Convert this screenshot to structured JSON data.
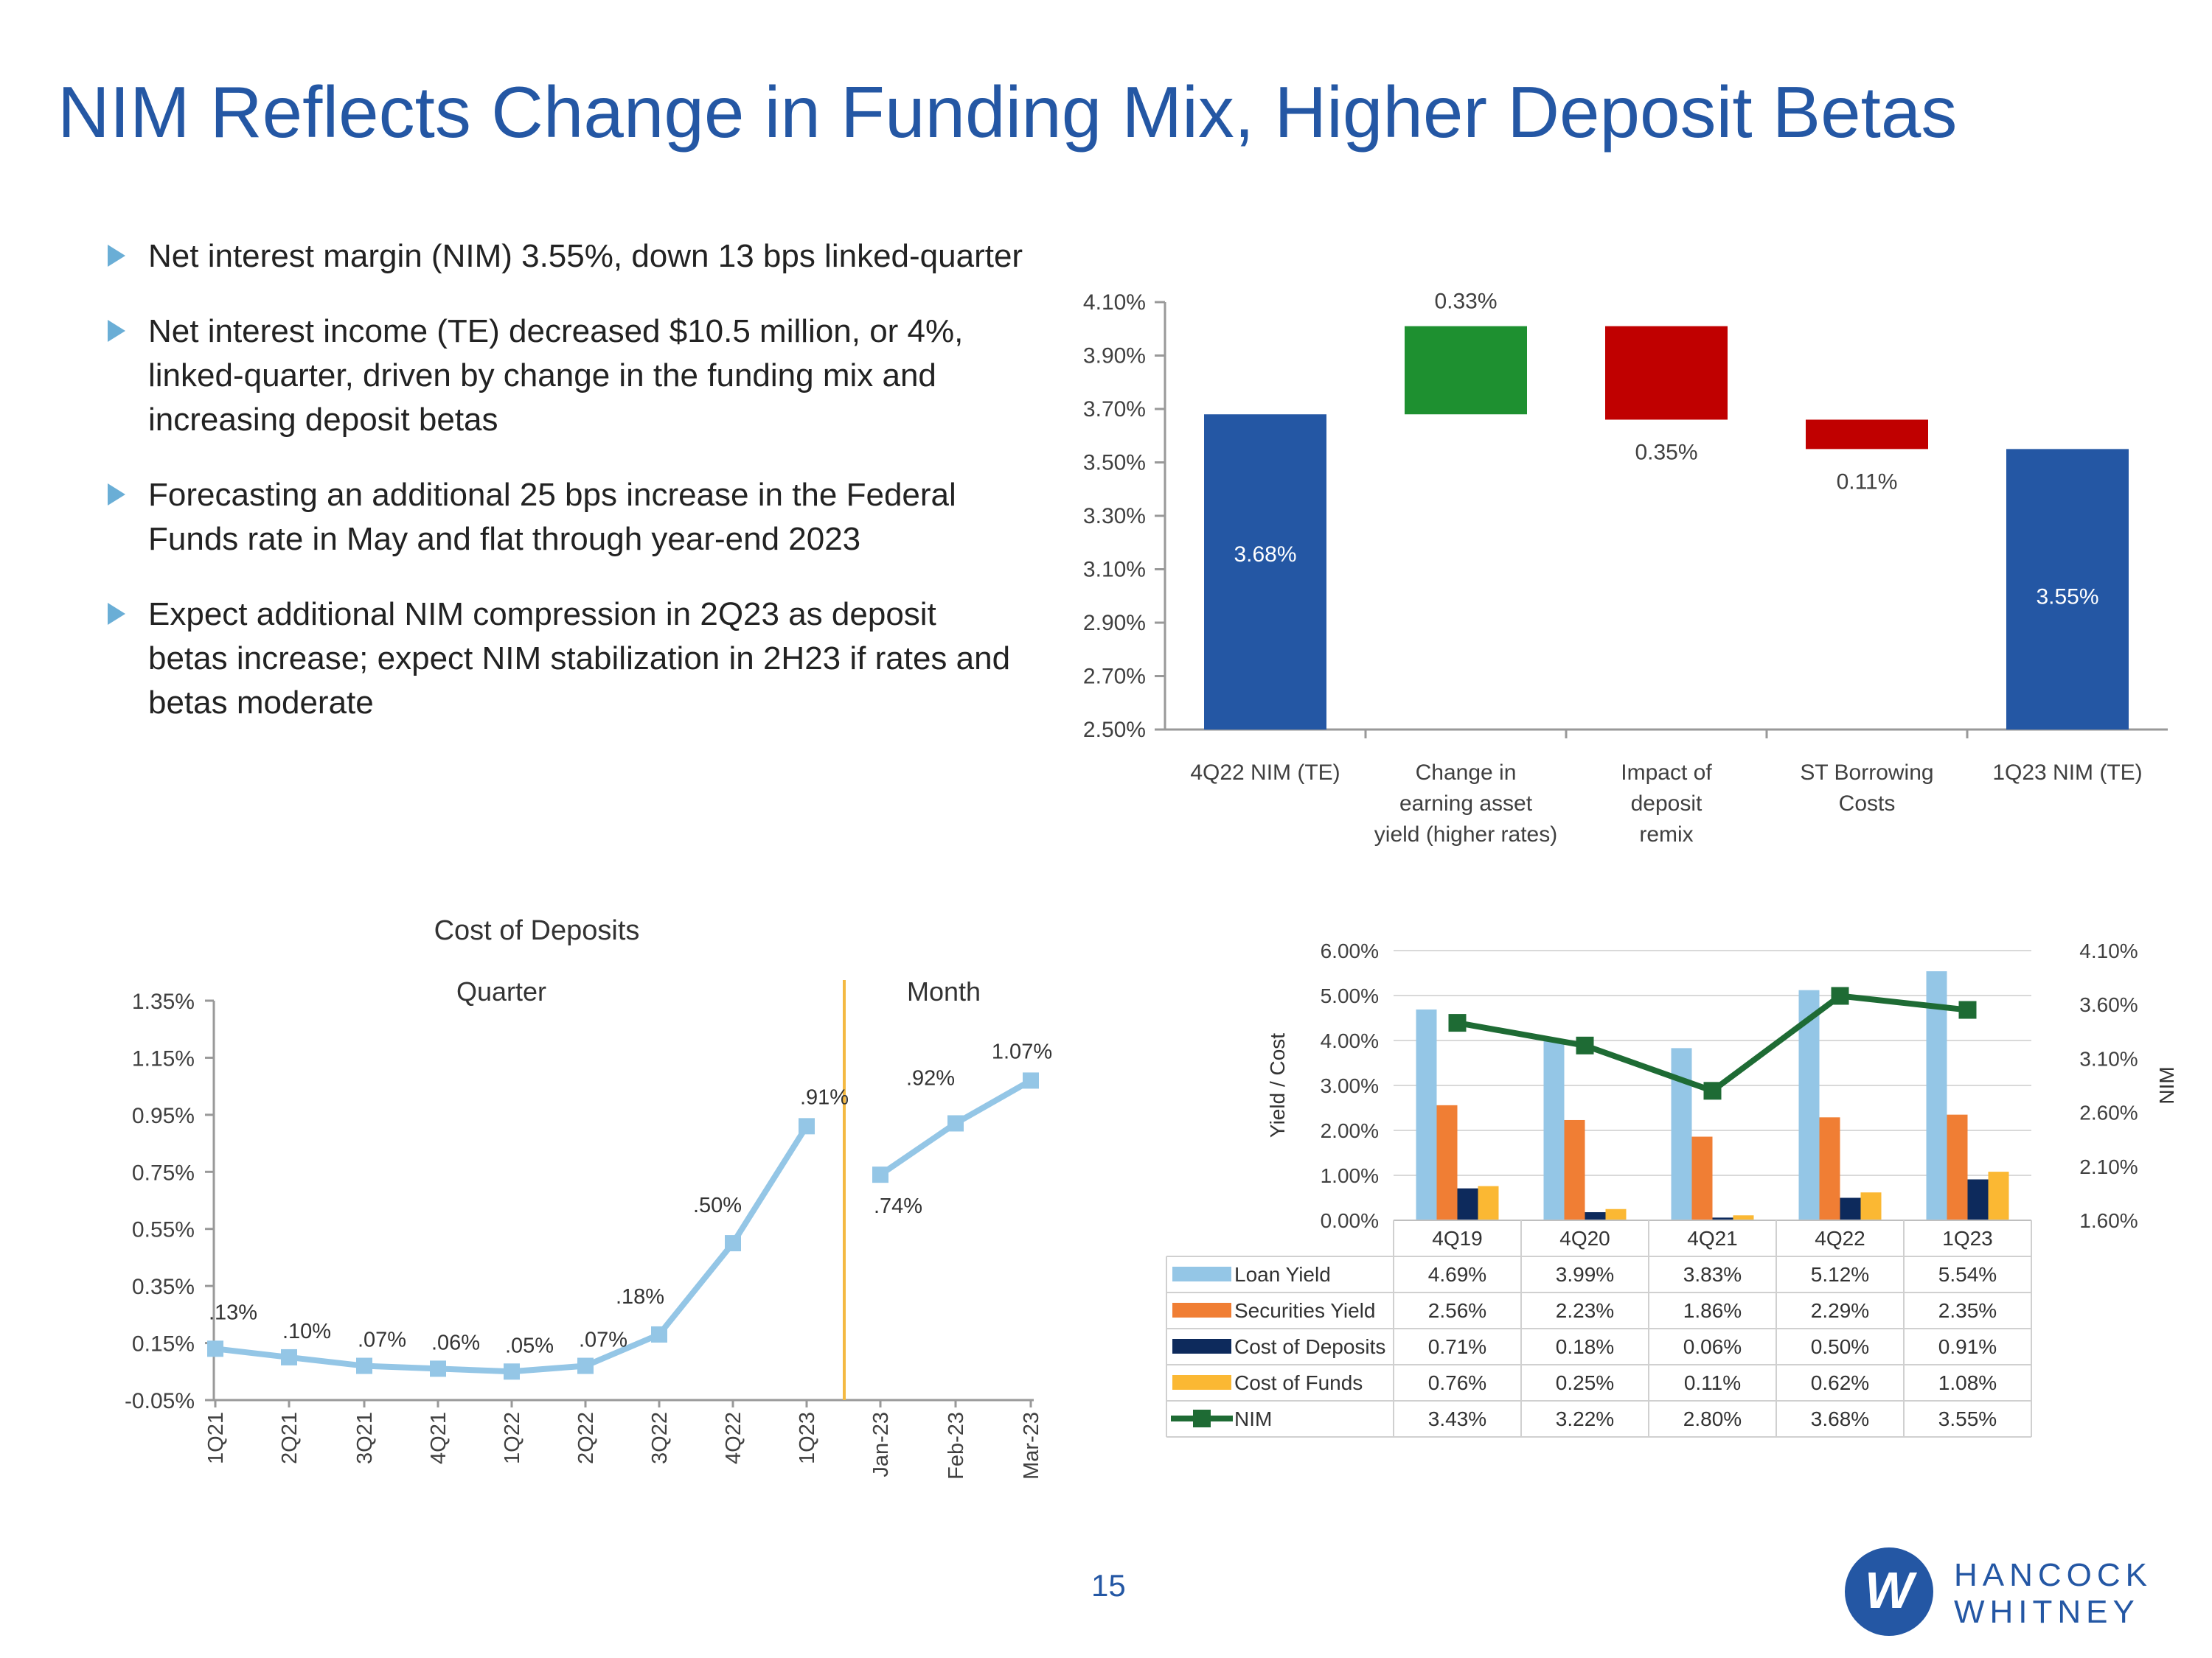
{
  "title": "NIM Reflects Change in Funding Mix, Higher Deposit Betas",
  "bullets": [
    "Net interest margin (NIM) 3.55%, down 13 bps linked-quarter",
    "Net interest income (TE) decreased $10.5 million, or 4%, linked-quarter, driven by change in the funding mix and increasing deposit betas",
    "Forecasting an additional 25 bps increase in the Federal Funds rate in May and flat through year-end 2023",
    "Expect additional NIM compression in 2Q23 as deposit betas increase; expect NIM stabilization in 2H23 if rates and betas moderate"
  ],
  "page_number": "15",
  "logo": {
    "line1": "HANCOCK",
    "line2": "WHITNEY",
    "mark_letter": "W"
  },
  "colors": {
    "title": "#2457a4",
    "nim_bar": "#2457a4",
    "increase": "#1e9030",
    "decrease": "#c00000",
    "loan": "#94c6e6",
    "securities": "#f07e34",
    "deposits": "#0d2a5c",
    "funds": "#fbb833",
    "nim_line": "#1e6b34",
    "cod_line": "#94c6e6"
  },
  "chart_data": [
    {
      "type": "bar",
      "subtype": "waterfall",
      "categories": [
        "4Q22 NIM (TE)",
        "Change in earning asset yield (higher rates)",
        "Impact of deposit remix",
        "ST Borrowing Costs",
        "1Q23 NIM (TE)"
      ],
      "category_lines": [
        [
          "4Q22 NIM (TE)"
        ],
        [
          "Change in",
          "earning asset",
          "yield (higher rates)"
        ],
        [
          "Impact of",
          "deposit",
          "remix"
        ],
        [
          "ST Borrowing",
          "Costs"
        ],
        [
          "1Q23 NIM (TE)"
        ]
      ],
      "bars": [
        {
          "kind": "total",
          "start": 2.5,
          "end": 3.68,
          "label": "3.68%"
        },
        {
          "kind": "increase",
          "start": 3.68,
          "end": 4.01,
          "label": "0.33%"
        },
        {
          "kind": "decrease",
          "start": 4.01,
          "end": 3.66,
          "label": "0.35%"
        },
        {
          "kind": "decrease",
          "start": 3.66,
          "end": 3.55,
          "label": "0.11%"
        },
        {
          "kind": "total",
          "start": 2.5,
          "end": 3.55,
          "label": "3.55%"
        }
      ],
      "ylim": [
        2.5,
        4.1
      ],
      "yticks": [
        "2.50%",
        "2.70%",
        "2.90%",
        "3.10%",
        "3.30%",
        "3.50%",
        "3.70%",
        "3.90%",
        "4.10%"
      ],
      "ytick_values": [
        2.5,
        2.7,
        2.9,
        3.1,
        3.3,
        3.5,
        3.7,
        3.9,
        4.1
      ]
    },
    {
      "type": "line",
      "title": "Cost of Deposits",
      "section_labels": [
        "Quarter",
        "Month"
      ],
      "segments": [
        {
          "name": "Quarter",
          "x": [
            "1Q21",
            "2Q21",
            "3Q21",
            "4Q21",
            "1Q22",
            "2Q22",
            "3Q22",
            "4Q22",
            "1Q23"
          ],
          "values": [
            0.13,
            0.1,
            0.07,
            0.06,
            0.05,
            0.07,
            0.18,
            0.5,
            0.91
          ],
          "labels": [
            ".13%",
            ".10%",
            ".07%",
            ".06%",
            ".05%",
            ".07%",
            ".18%",
            ".50%",
            ".91%"
          ]
        },
        {
          "name": "Month",
          "x": [
            "Jan-23",
            "Feb-23",
            "Mar-23"
          ],
          "values": [
            0.74,
            0.92,
            1.07
          ],
          "labels": [
            ".74%",
            ".92%",
            "1.07%"
          ]
        }
      ],
      "ylim": [
        -0.05,
        1.35
      ],
      "yticks": [
        "-0.05%",
        "0.15%",
        "0.35%",
        "0.55%",
        "0.75%",
        "0.95%",
        "1.15%",
        "1.35%"
      ],
      "ytick_values": [
        -0.05,
        0.15,
        0.35,
        0.55,
        0.75,
        0.95,
        1.15,
        1.35
      ]
    },
    {
      "type": "bar",
      "subtype": "bar-line-table",
      "categories": [
        "4Q19",
        "4Q20",
        "4Q21",
        "4Q22",
        "1Q23"
      ],
      "series": [
        {
          "name": "Loan Yield",
          "kind": "bar",
          "values": [
            4.69,
            3.99,
            3.83,
            5.12,
            5.54
          ],
          "labels": [
            "4.69%",
            "3.99%",
            "3.83%",
            "5.12%",
            "5.54%"
          ]
        },
        {
          "name": "Securities Yield",
          "kind": "bar",
          "values": [
            2.56,
            2.23,
            1.86,
            2.29,
            2.35
          ],
          "labels": [
            "2.56%",
            "2.23%",
            "1.86%",
            "2.29%",
            "2.35%"
          ]
        },
        {
          "name": "Cost of Deposits",
          "kind": "bar",
          "values": [
            0.71,
            0.18,
            0.06,
            0.5,
            0.91
          ],
          "labels": [
            "0.71%",
            "0.18%",
            "0.06%",
            "0.50%",
            "0.91%"
          ]
        },
        {
          "name": "Cost of Funds",
          "kind": "bar",
          "values": [
            0.76,
            0.25,
            0.11,
            0.62,
            1.08
          ],
          "labels": [
            "0.76%",
            "0.25%",
            "0.11%",
            "0.62%",
            "1.08%"
          ]
        },
        {
          "name": "NIM",
          "kind": "line",
          "axis": "right",
          "values": [
            3.43,
            3.22,
            2.8,
            3.68,
            3.55
          ],
          "labels": [
            "3.43%",
            "3.22%",
            "2.80%",
            "3.68%",
            "3.55%"
          ]
        }
      ],
      "ylabel": "Yield / Cost",
      "y2label": "NIM",
      "ylim": [
        0,
        6
      ],
      "y2lim": [
        1.6,
        4.1
      ],
      "yticks": [
        "0.00%",
        "1.00%",
        "2.00%",
        "3.00%",
        "4.00%",
        "5.00%",
        "6.00%"
      ],
      "ytick_values": [
        0,
        1,
        2,
        3,
        4,
        5,
        6
      ],
      "y2ticks": [
        "1.60%",
        "2.10%",
        "2.60%",
        "3.10%",
        "3.60%",
        "4.10%"
      ],
      "y2tick_values": [
        1.6,
        2.1,
        2.6,
        3.1,
        3.6,
        4.1
      ]
    }
  ]
}
